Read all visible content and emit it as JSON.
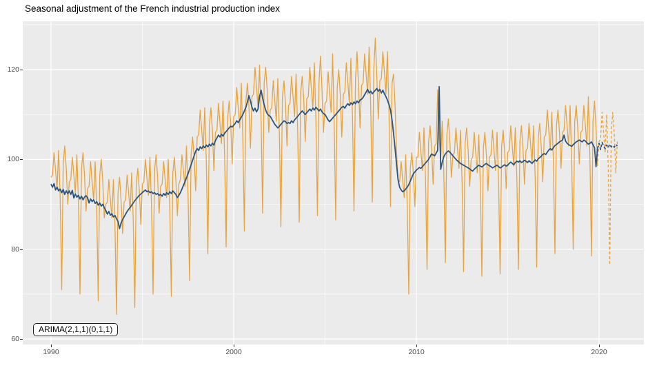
{
  "annotation": {
    "label": "ARIMA(2,1,1)(0,1,1)"
  },
  "colors": {
    "raw_series": "#E8A33D",
    "adjusted_series": "#2B547E",
    "panel_background": "#EBEBEB",
    "gridline": "#FFFFFF",
    "tick_text": "#4D4D4D",
    "title_text": "#000000"
  },
  "chart_data": {
    "type": "line",
    "title": "Seasonal adjustment of the French industrial production index",
    "annotation": "ARIMA(2,1,1)(0,1,1)",
    "frequency": "monthly",
    "legend": "none",
    "grid": "on",
    "x_axis": {
      "ticks": [
        1990,
        2000,
        2010,
        2020
      ],
      "minor_ticks": [
        1995,
        2005,
        2015
      ],
      "range": [
        1988.45,
        2022.45
      ]
    },
    "y_axis": {
      "ticks": [
        60,
        80,
        100,
        120
      ],
      "minor_ticks": [
        70,
        90,
        110,
        130
      ],
      "range": [
        58.8,
        129.7
      ]
    },
    "series": [
      {
        "name": "raw-index",
        "color": "#E8A33D",
        "style": "solid",
        "width": 1.3,
        "start_year": 1990,
        "values": [
          96,
          96.5,
          101.5,
          97.5,
          93.5,
          102,
          91.5,
          71,
          99,
          103,
          98,
          90,
          95,
          95.5,
          100.5,
          96.5,
          92.5,
          101,
          90.5,
          70,
          98,
          101.5,
          96.5,
          88.5,
          93.5,
          94,
          99.5,
          95,
          91,
          99.5,
          89,
          68.5,
          96.5,
          100,
          95,
          87,
          90,
          90.5,
          95.5,
          91,
          87,
          95.5,
          85,
          65.5,
          92.5,
          96,
          91,
          83.5,
          90.5,
          91,
          96.5,
          92.5,
          88.5,
          97,
          86.5,
          67,
          94.5,
          98,
          93,
          85.5,
          94.5,
          95,
          100,
          96,
          92,
          100.5,
          89.5,
          70,
          97.5,
          101,
          96,
          88,
          94,
          94.5,
          99.5,
          95.5,
          91.5,
          100,
          89,
          69.5,
          97,
          100.5,
          95.5,
          87.5,
          94.5,
          95.5,
          101,
          97.5,
          94,
          103,
          92,
          73,
          101,
          105,
          100.5,
          93,
          105,
          105.5,
          111,
          106.5,
          102,
          111.5,
          99.5,
          79,
          107.5,
          111.5,
          106.5,
          97.5,
          106,
          106.5,
          112.5,
          108,
          103.5,
          113,
          101,
          80.5,
          109,
          113,
          108,
          99,
          109.5,
          110,
          116,
          111.5,
          107,
          117,
          104.5,
          84,
          113,
          117,
          112,
          102.5,
          114,
          114.5,
          120.5,
          116,
          111.5,
          121,
          108.5,
          88,
          117,
          120.5,
          115.5,
          106,
          111,
          111.5,
          117.5,
          113,
          108.5,
          118,
          105.5,
          85,
          114,
          117.5,
          112.5,
          103,
          112,
          112.5,
          118.5,
          114,
          109.5,
          119,
          106.5,
          86,
          115,
          118.5,
          113.5,
          104,
          113.5,
          114,
          120.5,
          116,
          111.5,
          121.5,
          108.5,
          87.5,
          117,
          123,
          115.5,
          106,
          112.5,
          113,
          119.5,
          115,
          110.5,
          123.5,
          107.5,
          86.5,
          116,
          120,
          114.5,
          105,
          114.5,
          115,
          121.5,
          117,
          112.5,
          122.5,
          109.5,
          88.5,
          118,
          124,
          116.5,
          107,
          116.5,
          117,
          123.5,
          119,
          114.5,
          125,
          111.5,
          90.5,
          120,
          127,
          118.5,
          109,
          117.5,
          118,
          124,
          119.5,
          114.5,
          124,
          110.5,
          89.5,
          117,
          119,
          112,
          101.5,
          95.5,
          95,
          99.5,
          95.5,
          91.5,
          101,
          89.5,
          70,
          98,
          101.5,
          97,
          89.5,
          100.5,
          100.5,
          106,
          101.5,
          97.5,
          107,
          95.5,
          75.5,
          104,
          107.5,
          102.5,
          94.5,
          103,
          103.5,
          115.5,
          104.5,
          100,
          108.5,
          97,
          77,
          105.5,
          109,
          104,
          96,
          101,
          101.5,
          107,
          102.5,
          98,
          106.5,
          95,
          75,
          103.5,
          107,
          102,
          94,
          100,
          100.5,
          106,
          101.5,
          97,
          105.5,
          94,
          74,
          102.5,
          106,
          101,
          93,
          100.5,
          101,
          106.5,
          102,
          97.5,
          106,
          94.5,
          74.5,
          103,
          106.5,
          101.5,
          93.5,
          101.5,
          102,
          107.5,
          103,
          98.5,
          107,
          95.5,
          75.5,
          104,
          107.5,
          102.5,
          94.5,
          102,
          102.5,
          108,
          103.5,
          99,
          107.5,
          96,
          76,
          104.5,
          108,
          103,
          95,
          105,
          105.5,
          111,
          106.5,
          102,
          110.5,
          99,
          79,
          107.5,
          111,
          106,
          98,
          106,
          106.5,
          112,
          107.5,
          103,
          112,
          100,
          80,
          108.5,
          112,
          107,
          99,
          106,
          106.5,
          112,
          107.5,
          103,
          114,
          100,
          78.5,
          108.5,
          113,
          107,
          98.5
        ]
      },
      {
        "name": "seasonally-adjusted",
        "color": "#2B547E",
        "style": "solid",
        "width": 1.8,
        "start_year": 1990,
        "values": [
          94.5,
          93.8,
          94.6,
          93.2,
          93.8,
          93.0,
          93.4,
          92.6,
          93.3,
          92.2,
          93.0,
          92.4,
          93.0,
          92.2,
          93.1,
          91.4,
          92.3,
          91.6,
          92.0,
          91.2,
          91.8,
          91.0,
          91.6,
          91.9,
          91.5,
          90.3,
          91.2,
          90.6,
          91.0,
          90.2,
          90.6,
          89.8,
          90.3,
          89.6,
          90.0,
          89.2,
          88.6,
          87.8,
          88.4,
          87.6,
          87.9,
          87.2,
          87.5,
          86.8,
          86.2,
          84.6,
          85.8,
          86.6,
          87.2,
          87.8,
          88.4,
          88.9,
          89.3,
          89.8,
          90.3,
          90.8,
          91.2,
          91.6,
          92.0,
          92.3,
          92.6,
          92.9,
          93.2,
          92.8,
          93.0,
          92.6,
          92.8,
          92.4,
          92.6,
          92.2,
          92.4,
          92.0,
          92.2,
          91.8,
          92.4,
          92.0,
          92.6,
          92.2,
          92.8,
          92.4,
          93.0,
          92.6,
          92.2,
          91.5,
          92.0,
          92.6,
          93.4,
          94.2,
          95.0,
          95.9,
          96.8,
          97.8,
          98.8,
          99.8,
          100.8,
          101.8,
          102.4,
          102.0,
          102.8,
          102.4,
          103.0,
          102.6,
          103.2,
          102.8,
          103.4,
          103.0,
          103.6,
          103.2,
          104.2,
          104.8,
          105.4,
          105.0,
          105.6,
          105.2,
          105.8,
          106.2,
          106.6,
          107.0,
          107.4,
          107.2,
          107.6,
          108.0,
          108.6,
          108.2,
          108.8,
          109.4,
          110.0,
          110.8,
          111.6,
          112.8,
          114.2,
          113.0,
          111.6,
          110.8,
          111.4,
          110.6,
          111.2,
          114.0,
          115.4,
          113.6,
          112.2,
          111.0,
          110.2,
          109.8,
          109.6,
          109.0,
          108.4,
          107.8,
          107.4,
          107.0,
          107.4,
          107.8,
          108.2,
          108.6,
          108.4,
          108.0,
          108.2,
          108.0,
          108.6,
          108.2,
          108.8,
          109.2,
          109.6,
          110.0,
          110.4,
          110.8,
          110.4,
          110.0,
          110.4,
          110.8,
          111.2,
          110.8,
          111.4,
          111.0,
          111.6,
          111.2,
          110.8,
          111.2,
          110.6,
          110.2,
          110.0,
          109.4,
          108.8,
          108.4,
          108.8,
          109.2,
          109.6,
          110.0,
          110.4,
          110.8,
          111.2,
          111.6,
          111.8,
          111.4,
          112.0,
          112.4,
          112.0,
          112.6,
          112.2,
          112.8,
          112.4,
          113.0,
          112.6,
          113.2,
          113.4,
          113.8,
          114.4,
          115.0,
          115.6,
          114.8,
          115.2,
          114.6,
          115.0,
          115.4,
          115.8,
          115.2,
          115.6,
          114.8,
          115.4,
          114.6,
          114.0,
          113.2,
          112.2,
          111.0,
          108.8,
          105.8,
          102.4,
          98.8,
          95.4,
          93.8,
          93.2,
          92.8,
          93.0,
          93.4,
          93.8,
          94.4,
          95.2,
          96.0,
          96.8,
          97.2,
          97.6,
          97.9,
          98.2,
          98.0,
          98.4,
          98.8,
          99.2,
          99.6,
          100.0,
          100.6,
          101.2,
          101.0,
          100.8,
          101.4,
          102.0,
          116.2,
          97.8,
          99.4,
          100.6,
          101.2,
          101.6,
          101.9,
          101.6,
          101.2,
          100.8,
          100.4,
          100.0,
          99.7,
          99.4,
          99.1,
          98.9,
          98.7,
          98.5,
          98.3,
          98.1,
          97.9,
          97.6,
          97.4,
          97.8,
          98.1,
          98.4,
          98.7,
          98.5,
          98.3,
          98.6,
          98.9,
          99.1,
          98.8,
          98.6,
          98.4,
          98.1,
          98.3,
          98.5,
          98.7,
          98.4,
          98.1,
          98.3,
          98.6,
          98.8,
          98.5,
          98.7,
          99.1,
          99.4,
          99.1,
          98.8,
          99.3,
          99.6,
          99.4,
          99.7,
          99.3,
          99.5,
          99.8,
          99.6,
          99.3,
          99.7,
          99.4,
          99.1,
          99.5,
          99.9,
          99.6,
          100.1,
          100.4,
          100.7,
          101.1,
          101.3,
          101.1,
          101.6,
          102.1,
          102.4,
          102.1,
          102.6,
          103.1,
          103.3,
          103.6,
          103.9,
          104.1,
          104.3,
          105.4,
          104.1,
          103.6,
          103.3,
          103.1,
          102.9,
          103.3,
          103.6,
          103.9,
          104.1,
          104.3,
          104.1,
          103.9,
          104.3,
          104.1,
          103.7,
          103.4,
          103.6,
          103.9,
          103.3,
          102.6,
          98.4,
          102.4
        ]
      },
      {
        "name": "raw-index-forecast",
        "color": "#E8A33D",
        "style": "dashed",
        "width": 1.3,
        "start_year": 2019.9167,
        "values": [
          98.5,
          104,
          104.5,
          110.5,
          106,
          101.5,
          110,
          98.5,
          76.5,
          106.5,
          110.5,
          105.5,
          97,
          104
        ]
      },
      {
        "name": "seasonally-adjusted-forecast",
        "color": "#2B547E",
        "style": "dashed",
        "width": 1.8,
        "start_year": 2019.9167,
        "values": [
          102.4,
          103.6,
          102.2,
          103.8,
          103.0,
          102.4,
          103.2,
          102.6,
          103.4,
          102.8,
          103.1,
          102.7,
          103.3,
          103.0
        ]
      }
    ]
  }
}
